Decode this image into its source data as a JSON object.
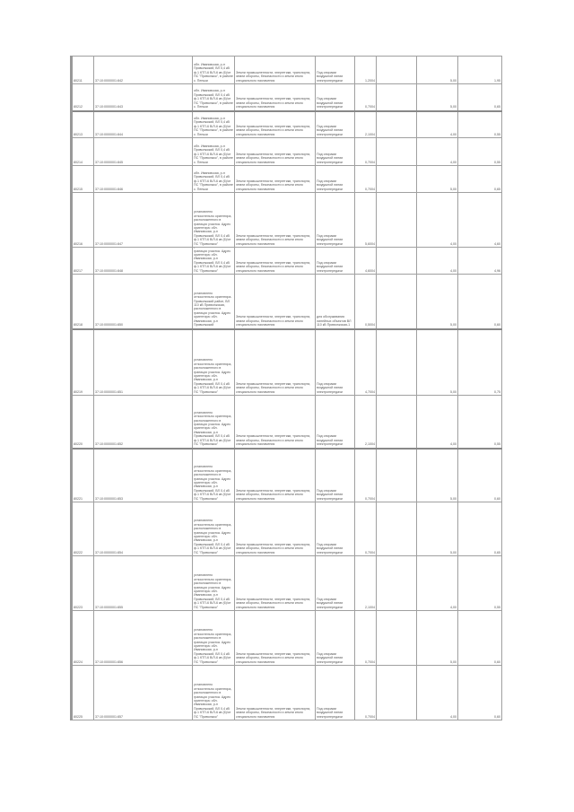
{
  "table": {
    "rows": [
      {
        "id": "80211",
        "cadastral": "37:10:0000001:842",
        "address": "обл. Ивановская, р-н Приволжский, ВЛ 0,4 кВ ф.1 КТП-6 В/Л-6 кв (6)/от ПС \"Приволжск\", в районе с. Пеньки",
        "purpose": "Земли промышленности, энергетики, транспорта, земли обороны, безопасности и земли иного специального назначения",
        "restriction": "Под опорами воздушной линии электропередачи",
        "area": "1,2004",
        "col7": "",
        "rate": "5,00",
        "value": "1,95"
      },
      {
        "id": "80212",
        "cadastral": "37:10:0000001:843",
        "address": "обл. Ивановская, р-н Приволжский, ВЛ 0,4 кВ ф.1 КТП-6 В/Л-6 кв (6)/от ПС \"Приволжск\", в районе с. Пеньки",
        "purpose": "Земли промышленности, энергетики, транспорта, земли обороны, безопасности и земли иного специального назначения",
        "restriction": "Под опорами воздушной линии электропередачи",
        "area": "0,7004",
        "col7": "",
        "rate": "5,00",
        "value": "0,65"
      },
      {
        "id": "80213",
        "cadastral": "37:10:0000001:844",
        "address": "обл. Ивановская, р-н Приволжский, ВЛ 0,4 кВ ф.1 КТП-6 В/Л-6 кв (6)/от ПС \"Приволжск\", в районе с. Пеньки",
        "purpose": "Земли промышленности, энергетики, транспорта, земли обороны, безопасности и земли иного специального назначения",
        "restriction": "Под опорами воздушной линии электропередачи",
        "area": "2,1004",
        "col7": "",
        "rate": "4,00",
        "value": "0,55"
      },
      {
        "id": "80214",
        "cadastral": "37:10:0000001:845",
        "address": "обл. Ивановская, р-н Приволжский, ВЛ 0,4 кВ ф.1 КТП-6 В/Л-6 кв (6)/от ПС \"Приволжск\", в районе с. Пеньки",
        "purpose": "Земли промышленности, энергетики, транспорта, земли обороны, безопасности и земли иного специального назначения",
        "restriction": "Под опорами воздушной линии электропередачи",
        "area": "0,7004",
        "col7": "",
        "rate": "4,00",
        "value": "0,55"
      },
      {
        "id": "80215",
        "cadastral": "37:10:0000001:846",
        "address": "обл. Ивановская, р-н Приволжский, ВЛ 0,4 кВ ф.1 КТП-6 В/Л-6 кв (6)/от ПС \"Приволжск\", в районе с. Пеньки",
        "purpose": "Земли промышленности, энергетики, транспорта, земли обороны, безопасности и земли иного специального назначения",
        "restriction": "Под опорами воздушной линии электропередачи",
        "area": "0,7004",
        "col7": "",
        "rate": "5,00",
        "value": "0,65"
      },
      {
        "id": "80216",
        "cadastral": "37:10:0000001:847",
        "address": "установлено относительно ориентира, расположенного в границах участка. Адрес ориентира: обл. Ивановская, р-н Приволжский, ВЛ 0,4 кВ ф.1 КТП-6 В/Л-6 кв (6)/от ПС \"Приволжск\"",
        "purpose": "Земли промышленности, энергетики, транспорта, земли обороны, безопасности и земли иного специального назначения",
        "restriction": "Под опорами воздушной линии электропередачи",
        "area": "5,6004",
        "col7": "",
        "rate": "4,00",
        "value": "4,60"
      },
      {
        "id": "80217",
        "cadastral": "37:10:0000001:848",
        "address": "установлено относительно ориентира, расположенного в границах участка. Адрес ориентира: обл. Ивановская, р-н Приволжский, ВЛ 0,4 кВ ф.1 КТП-6 В/Л-6 кв (6)/от ПС \"Приволжск\"",
        "purpose": "Земли промышленности, энергетики, транспорта, земли обороны, безопасности и земли иного специального назначения",
        "restriction": "Под опорами воздушной линии электропередачи",
        "area": "4,6004",
        "col7": "",
        "rate": "4,00",
        "value": "4,96"
      },
      {
        "id": "80218",
        "cadastral": "37:10:0000001:850",
        "address": "установлено относительно ориентира. Приволжский район, ВЛ 110 кВ Приволжская, расположенного в границах участка. Адрес ориентира: обл. Ивановская, р-н Приволжский",
        "purpose": "Земли промышленности, энергетики, транспорта, земли обороны, безопасности и земли иного специального назначения",
        "restriction": "для обслуживания линейных объектов ВЛ 110 кВ Приволжская-1",
        "area": "0,5004",
        "col7": "",
        "rate": "5,00",
        "value": "0,60"
      },
      {
        "id": "80219",
        "cadastral": "37:10:0000001:851",
        "address": "установлено относительно ориентира, расположенного в границах участка. Адрес ориентира: обл. Ивановская, р-н Приволжский, ВЛ 0,4 кВ ф.1 КТП-6 В/Л-6 кв (6)/от ПС \"Приволжск\"",
        "purpose": "Земли промышленности, энергетики, транспорта, земли обороны, безопасности и земли иного специального назначения",
        "restriction": "Под опорами воздушной линии электропередачи",
        "area": "4,7004",
        "col7": "",
        "rate": "5,00",
        "value": "0,75"
      },
      {
        "id": "80220",
        "cadastral": "37:10:0000001:852",
        "address": "установлено относительно ориентира, расположенного в границах участка. Адрес ориентира: обл. Ивановская, р-н Приволжский, ВЛ 0,4 кВ ф.1 КТП-6 В/Л-6 кв (6)/от ПС \"Приволжск\"",
        "purpose": "Земли промышленности, энергетики, транспорта, земли обороны, безопасности и земли иного специального назначения",
        "restriction": "Под опорами воздушной линии электропередачи",
        "area": "2,1004",
        "col7": "",
        "rate": "4,00",
        "value": "0,55"
      },
      {
        "id": "80221",
        "cadastral": "37:10:0000001:853",
        "address": "установлено относительно ориентира, расположенного в границах участка. Адрес ориентира: обл. Ивановская, р-н Приволжский, ВЛ 0,4 кВ ф.1 КТП-6 В/Л-6 кв (6)/от ПС \"Приволжск\"",
        "purpose": "Земли промышленности, энергетики, транспорта, земли обороны, безопасности и земли иного специального назначения",
        "restriction": "Под опорами воздушной линии электропередачи",
        "area": "0,7004",
        "col7": "",
        "rate": "5,00",
        "value": "0,60"
      },
      {
        "id": "80222",
        "cadastral": "37:10:0000001:854",
        "address": "установлено относительно ориентира, расположенного в границах участка. Адрес ориентира: обл. Ивановская, р-н Приволжский, ВЛ 0,4 кВ ф.1 КТП-6 В/Л-6 кв (6)/от ПС \"Приволжск\"",
        "purpose": "Земли промышленности, энергетики, транспорта, земли обороны, безопасности и земли иного специального назначения",
        "restriction": "Под опорами воздушной линии электропередачи",
        "area": "0,7004",
        "col7": "",
        "rate": "5,00",
        "value": "0,65"
      },
      {
        "id": "80223",
        "cadastral": "37:10:0000001:855",
        "address": "установлено относительно ориентира, расположенного в границах участка. Адрес ориентира: обл. Ивановская, р-н Приволжский, ВЛ 0,4 кВ ф.1 КТП-6 В/Л-6 кв (6)/от ПС \"Приволжск\"",
        "purpose": "Земли промышленности, энергетики, транспорта, земли обороны, безопасности и земли иного специального назначения",
        "restriction": "Под опорами воздушной линии электропередачи",
        "area": "2,1004",
        "col7": "",
        "rate": "4,00",
        "value": "0,55"
      },
      {
        "id": "80224",
        "cadastral": "37:10:0000001:856",
        "address": "установлено относительно ориентира, расположенного в границах участка. Адрес ориентира: обл. Ивановская, р-н Приволжский, ВЛ 0,4 кВ ф.1 КТП-6 В/Л-6 кв (6)/от ПС \"Приволжск\"",
        "purpose": "Земли промышленности, энергетики, транспорта, земли обороны, безопасности и земли иного специального назначения",
        "restriction": "Под опорами воздушной линии электропередачи",
        "area": "0,7004",
        "col7": "",
        "rate": "5,00",
        "value": "0,60"
      },
      {
        "id": "80225",
        "cadastral": "37:10:0000001:857",
        "address": "установлено относительно ориентира, расположенного в границах участка. Адрес ориентира: обл. Ивановская, р-н Приволжский, ВЛ 0,4 кВ ф.1 КТП-6 В/Л-6 кв (6)/от ПС \"Приволжск\"",
        "purpose": "Земли промышленности, энергетики, транспорта, земли обороны, безопасности и земли иного специального назначения",
        "restriction": "Под опорами воздушной линии электропередачи",
        "area": "0,7004",
        "col7": "",
        "rate": "4,00",
        "value": "0,60"
      }
    ]
  }
}
